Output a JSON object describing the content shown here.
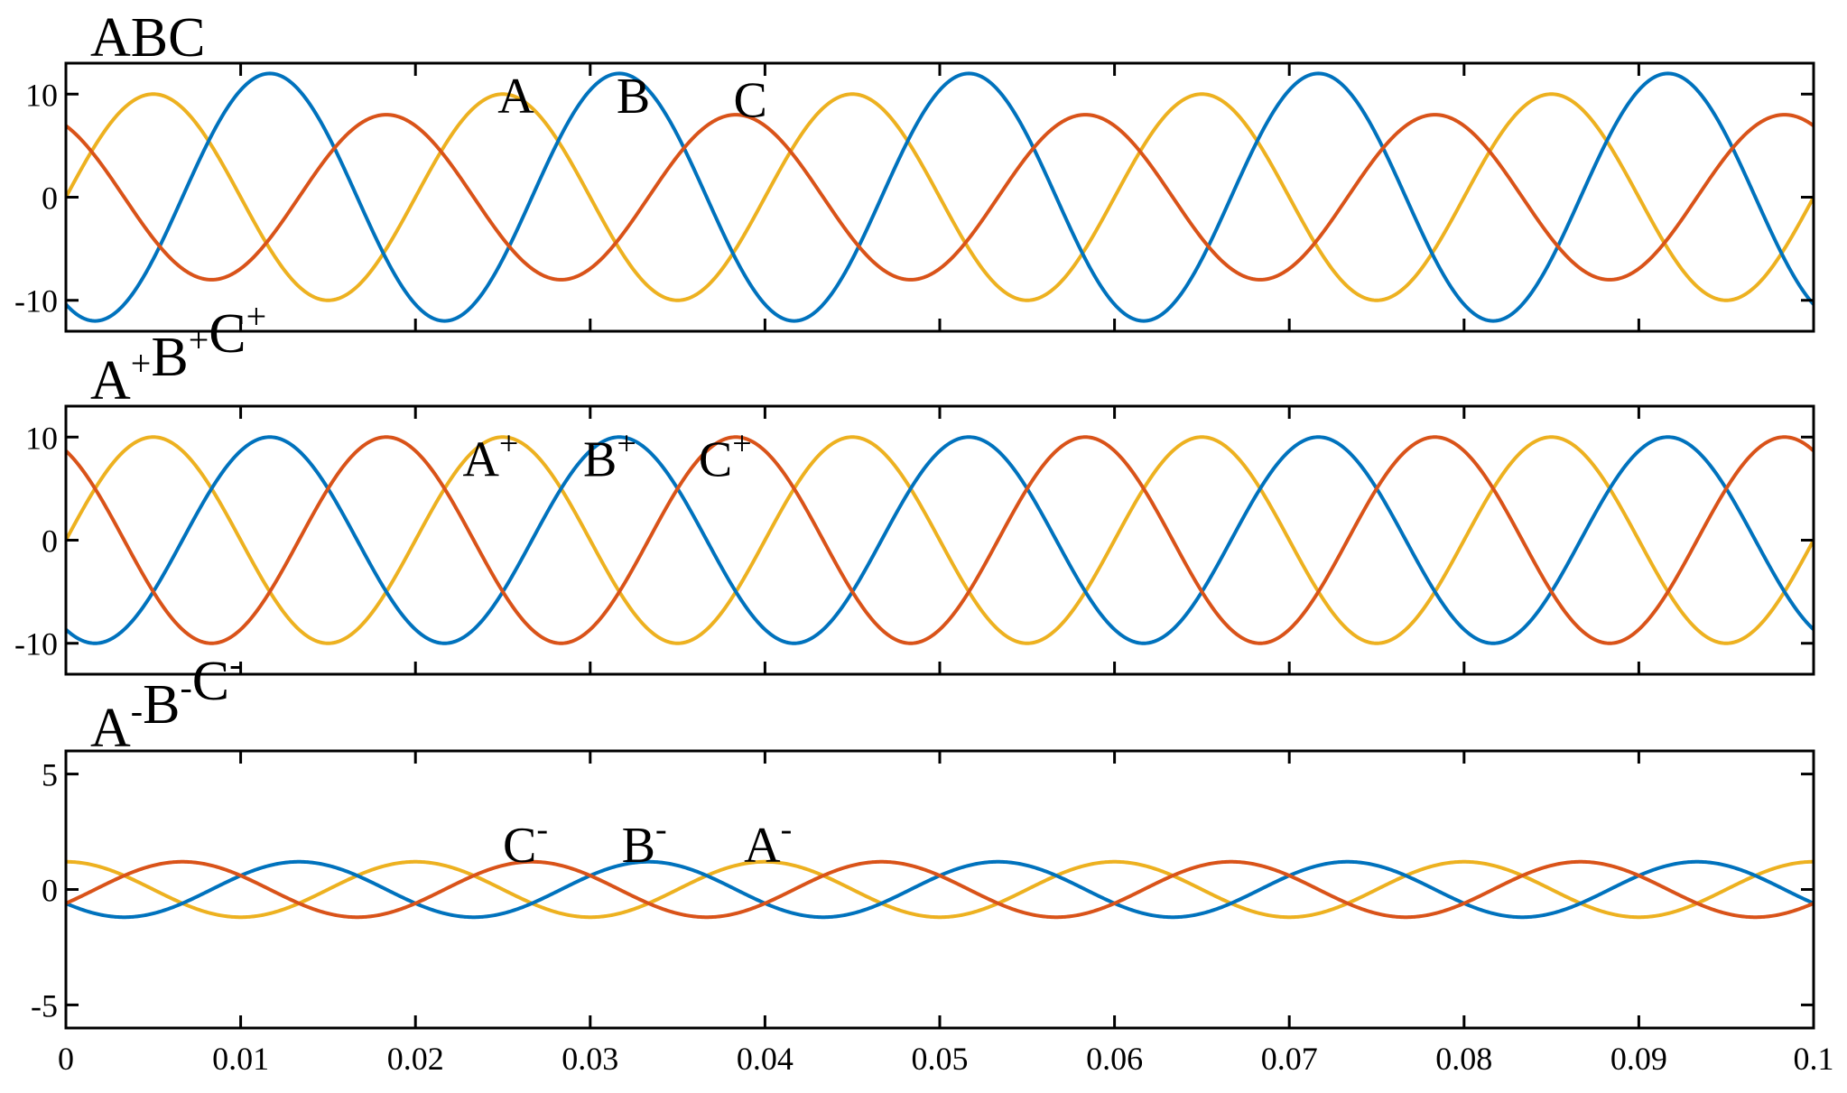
{
  "colors": {
    "A": "#edb120",
    "B": "#0072bd",
    "C": "#d95319",
    "axes": "#000000"
  },
  "x_ticks": [
    "0",
    "0.01",
    "0.02",
    "0.03",
    "0.04",
    "0.05",
    "0.06",
    "0.07",
    "0.08",
    "0.09",
    "0.1"
  ],
  "chart_data": [
    {
      "type": "line",
      "title": "ABC",
      "xlim": [
        0,
        0.1
      ],
      "ylim": [
        -13,
        13
      ],
      "yticks": [
        -10,
        0,
        10
      ],
      "ytick_labels": [
        "-10",
        "0",
        "10"
      ],
      "frequency_hz": 50,
      "series": [
        {
          "name": "A",
          "color_key": "A",
          "amplitude": 10,
          "phase_deg": 0
        },
        {
          "name": "B",
          "color_key": "B",
          "amplitude": 12,
          "phase_deg": -120
        },
        {
          "name": "C",
          "color_key": "C",
          "amplitude": 8,
          "phase_deg": 120
        }
      ],
      "annotations": [
        {
          "series": "A",
          "text": "A",
          "sup": "",
          "x": 0.0247,
          "y": 8.2
        },
        {
          "series": "B",
          "text": "B",
          "sup": "",
          "x": 0.0315,
          "y": 8.2
        },
        {
          "series": "C",
          "text": "C",
          "sup": "",
          "x": 0.0382,
          "y": 7.8
        }
      ]
    },
    {
      "type": "line",
      "title": "A+B+C+",
      "xlim": [
        0,
        0.1
      ],
      "ylim": [
        -13,
        13
      ],
      "yticks": [
        -10,
        0,
        10
      ],
      "ytick_labels": [
        "-10",
        "0",
        "10"
      ],
      "frequency_hz": 50,
      "series": [
        {
          "name": "A+",
          "color_key": "A",
          "amplitude": 10,
          "phase_deg": 0
        },
        {
          "name": "B+",
          "color_key": "B",
          "amplitude": 10,
          "phase_deg": -120
        },
        {
          "name": "C+",
          "color_key": "C",
          "amplitude": 10,
          "phase_deg": 120
        }
      ],
      "annotations": [
        {
          "series": "A+",
          "text": "A",
          "sup": "+",
          "x": 0.0227,
          "y": 6.2
        },
        {
          "series": "B+",
          "text": "B",
          "sup": "+",
          "x": 0.0296,
          "y": 6.2
        },
        {
          "series": "C+",
          "text": "C",
          "sup": "+",
          "x": 0.0362,
          "y": 6.2
        }
      ]
    },
    {
      "type": "line",
      "title": "A-B-C-",
      "xlim": [
        0,
        0.1
      ],
      "ylim": [
        -6,
        6
      ],
      "yticks": [
        -5,
        0,
        5
      ],
      "ytick_labels": [
        "-5",
        "0",
        "5"
      ],
      "frequency_hz": 50,
      "series": [
        {
          "name": "A-",
          "color_key": "A",
          "amplitude": 1.2,
          "phase_deg": 90
        },
        {
          "name": "B-",
          "color_key": "B",
          "amplitude": 1.2,
          "phase_deg": -150
        },
        {
          "name": "C-",
          "color_key": "C",
          "amplitude": 1.2,
          "phase_deg": -30
        }
      ],
      "annotations": [
        {
          "series": "C-",
          "text": "C",
          "sup": "-",
          "x": 0.025,
          "y": 1.2
        },
        {
          "series": "B-",
          "text": "B",
          "sup": "-",
          "x": 0.0318,
          "y": 1.2
        },
        {
          "series": "A-",
          "text": "A",
          "sup": "-",
          "x": 0.0388,
          "y": 1.2
        }
      ]
    }
  ]
}
